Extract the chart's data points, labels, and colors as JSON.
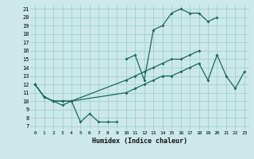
{
  "title": "",
  "xlabel": "Humidex (Indice chaleur)",
  "bg_color": "#cce8e8",
  "grid_color": "#99cccc",
  "line_color": "#1a6b5a",
  "xlim": [
    -0.5,
    23.5
  ],
  "ylim": [
    6.5,
    21.5
  ],
  "xticks": [
    0,
    1,
    2,
    3,
    4,
    5,
    6,
    7,
    8,
    9,
    10,
    11,
    12,
    13,
    14,
    15,
    16,
    17,
    18,
    19,
    20,
    21,
    22,
    23
  ],
  "yticks": [
    7,
    8,
    9,
    10,
    11,
    12,
    13,
    14,
    15,
    16,
    17,
    18,
    19,
    20,
    21
  ],
  "line1_xa": [
    0,
    1,
    2,
    3,
    4,
    5,
    6,
    7,
    8,
    9
  ],
  "line1_ya": [
    12,
    10.5,
    10,
    9.5,
    10,
    7.5,
    8.5,
    7.5,
    7.5,
    7.5
  ],
  "line1_xb": [
    10,
    11,
    12,
    13,
    14,
    15,
    16,
    17,
    18,
    19,
    20
  ],
  "line1_yb": [
    15,
    15.5,
    12.5,
    18.5,
    19,
    20.5,
    21,
    20.5,
    20.5,
    19.5,
    20
  ],
  "line2_x": [
    0,
    1,
    2,
    3,
    4,
    10,
    11,
    12,
    13,
    14,
    15,
    16,
    17,
    18
  ],
  "line2_y": [
    12,
    10.5,
    10,
    10,
    10,
    12.5,
    13,
    13.5,
    14,
    14.5,
    15,
    15,
    15.5,
    16
  ],
  "line3_x": [
    0,
    1,
    2,
    3,
    4,
    10,
    11,
    12,
    13,
    14,
    15,
    16,
    17,
    18,
    19,
    20,
    21,
    22,
    23
  ],
  "line3_y": [
    12,
    10.5,
    10,
    10,
    10,
    11,
    11.5,
    12,
    12.5,
    13,
    13,
    13.5,
    14,
    14.5,
    12.5,
    15.5,
    13,
    11.5,
    13.5
  ]
}
